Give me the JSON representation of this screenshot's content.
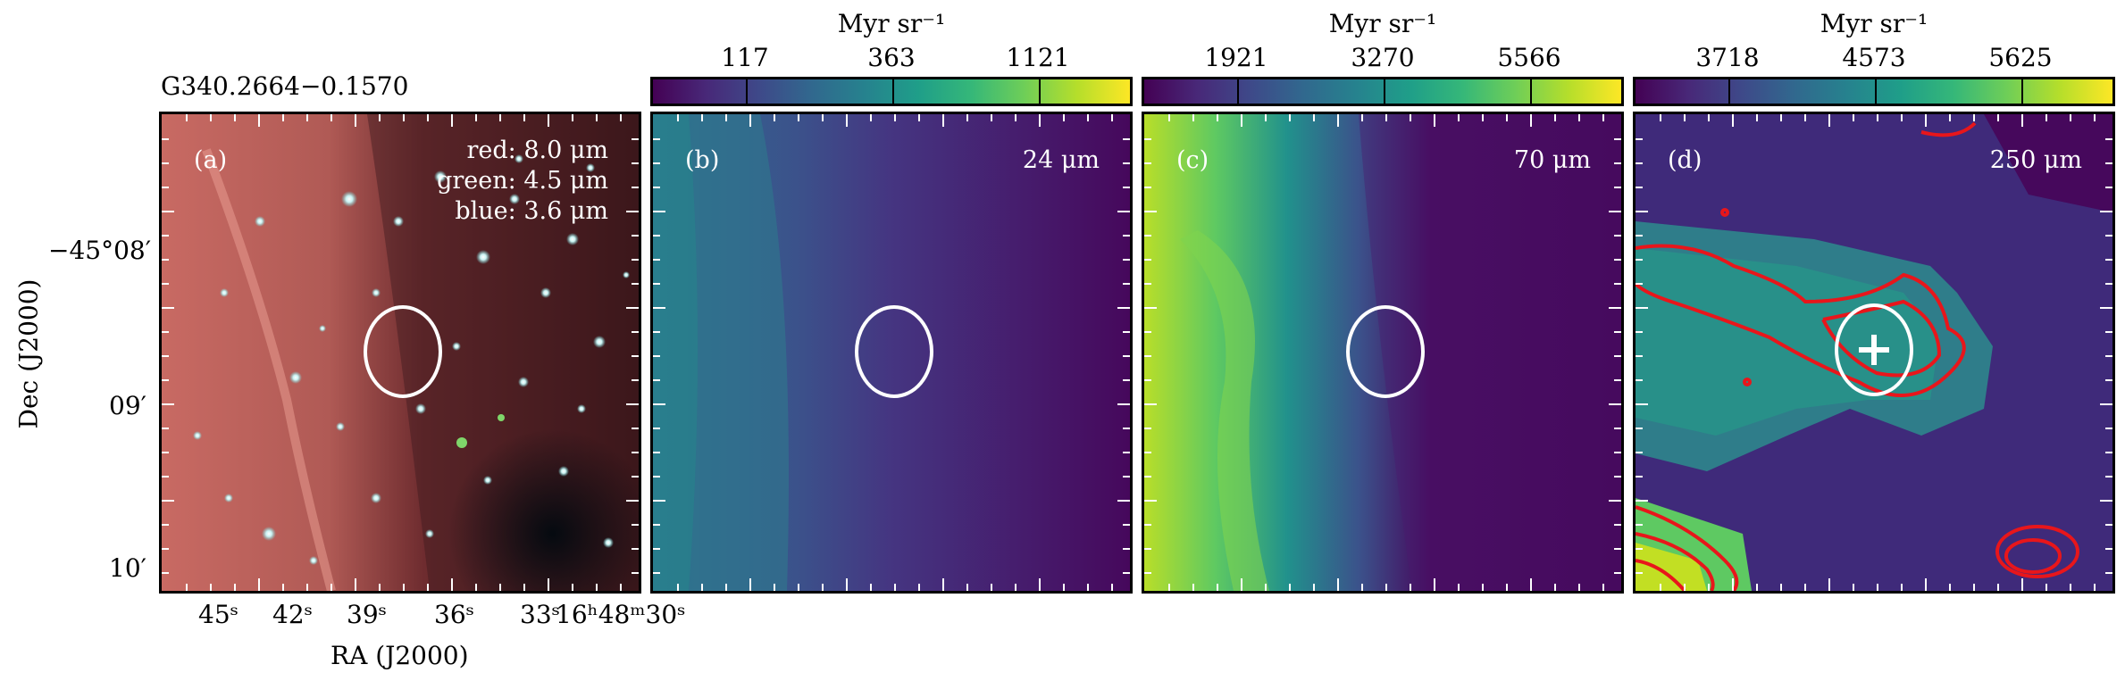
{
  "source_name": "G340.2664−0.1570",
  "panels": [
    {
      "label": "(a)",
      "legend": [
        "red: 8.0 μm",
        "green: 4.5 μm",
        "blue: 3.6 μm"
      ]
    },
    {
      "label": "(b)",
      "wavelength": "24 μm",
      "unit": "Myr sr⁻¹",
      "ticks": [
        "117",
        "363",
        "1121"
      ]
    },
    {
      "label": "(c)",
      "wavelength": "70 μm",
      "unit": "Myr sr⁻¹",
      "ticks": [
        "1921",
        "3270",
        "5566"
      ]
    },
    {
      "label": "(d)",
      "wavelength": "250 μm",
      "unit": "Myr sr⁻¹",
      "ticks": [
        "3718",
        "4573",
        "5625"
      ]
    }
  ],
  "dec_axis": {
    "title": "Dec (J2000)",
    "ticks": [
      "−45°08′",
      "09′",
      "10′"
    ]
  },
  "ra_axis": {
    "title": "RA (J2000)",
    "ticks": [
      "45ˢ",
      "42ˢ",
      "39ˢ",
      "36ˢ",
      "33ˢ",
      "16ʰ48ᵐ30ˢ"
    ]
  },
  "colors": {
    "contour": "#e8161b",
    "ellipse": "#ffffff",
    "frame": "#000000"
  }
}
